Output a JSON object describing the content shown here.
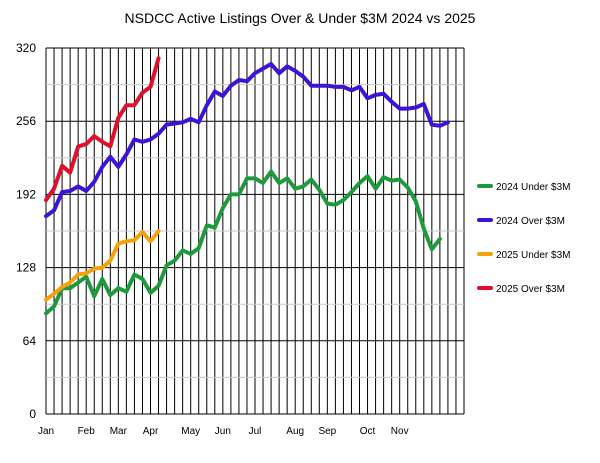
{
  "chart_data": {
    "type": "line",
    "title": "NSDCC Active Listings Over & Under $3M 2024 vs 2025",
    "xlabel": "",
    "ylabel": "",
    "ylim": [
      0,
      320
    ],
    "yticks": [
      0,
      64,
      128,
      192,
      256,
      320
    ],
    "xlim": [
      1,
      53
    ],
    "x_week_labels": [
      {
        "label": "Jan",
        "week": 1
      },
      {
        "label": "Feb",
        "week": 6
      },
      {
        "label": "Mar",
        "week": 10
      },
      {
        "label": "Apr",
        "week": 14
      },
      {
        "label": "May",
        "week": 19
      },
      {
        "label": "Jun",
        "week": 23
      },
      {
        "label": "Jul",
        "week": 27
      },
      {
        "label": "Aug",
        "week": 32
      },
      {
        "label": "Sep",
        "week": 36
      },
      {
        "label": "Oct",
        "week": 41
      },
      {
        "label": "Nov",
        "week": 45
      }
    ],
    "grid": "vertical lines every week; horizontal lines every 32 units",
    "legend_position": "right",
    "series": [
      {
        "name": "2024 Under $3M",
        "color": "#1e9a3c",
        "values": [
          88,
          94,
          110,
          110,
          115,
          120,
          103,
          118,
          104,
          110,
          107,
          122,
          118,
          106,
          112,
          130,
          134,
          143,
          140,
          145,
          165,
          163,
          180,
          192,
          192,
          206,
          206,
          202,
          212,
          202,
          206,
          197,
          199,
          205,
          196,
          184,
          183,
          187,
          194,
          202,
          208,
          197,
          207,
          204,
          205,
          198,
          186,
          162,
          144,
          153
        ]
      },
      {
        "name": "2024 Over $3M",
        "color": "#3c14d8",
        "values": [
          173,
          178,
          194,
          195,
          199,
          195,
          203,
          216,
          225,
          216,
          227,
          240,
          238,
          240,
          245,
          253,
          254,
          255,
          258,
          255,
          270,
          282,
          278,
          287,
          292,
          291,
          298,
          302,
          306,
          298,
          304,
          300,
          295,
          287,
          287,
          287,
          286,
          286,
          283,
          286,
          276,
          279,
          280,
          273,
          267,
          267,
          268,
          271,
          253,
          252,
          255
        ]
      },
      {
        "name": "2025 Under $3M",
        "color": "#f5a20a",
        "values": [
          100,
          105,
          111,
          115,
          122,
          123,
          127,
          128,
          134,
          149,
          151,
          152,
          159,
          151,
          160
        ]
      },
      {
        "name": "2025 Over $3M",
        "color": "#e0102c",
        "values": [
          187,
          197,
          217,
          211,
          234,
          236,
          243,
          238,
          234,
          259,
          270,
          270,
          281,
          286,
          311
        ]
      }
    ]
  }
}
